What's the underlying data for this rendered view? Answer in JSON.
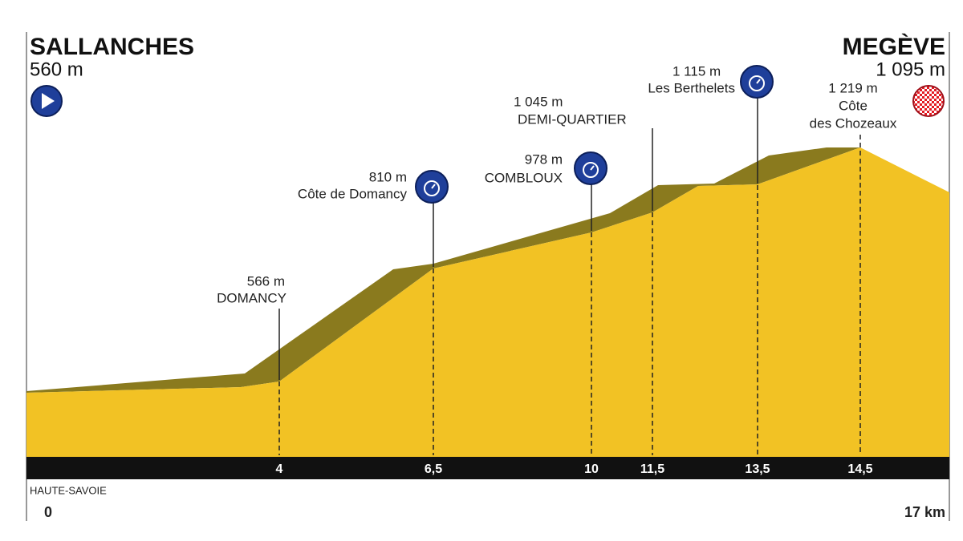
{
  "start": {
    "name": "SALLANCHES",
    "altitude": "560 m"
  },
  "finish": {
    "name": "MEGÈVE",
    "altitude": "1 095 m"
  },
  "points": [
    {
      "altitude": "566 m",
      "name_lines": [
        "DOMANCY"
      ],
      "km": "4"
    },
    {
      "altitude": "810 m",
      "name_lines": [
        "Côte de Domancy"
      ],
      "km": "6,5"
    },
    {
      "altitude": "978 m",
      "name_lines": [
        "COMBLOUX"
      ],
      "km": "10"
    },
    {
      "altitude": "1 045 m",
      "name_lines": [
        "DEMI-QUARTIER"
      ],
      "km": "11,5"
    },
    {
      "altitude": "1 115 m",
      "name_lines": [
        "Les Berthelets"
      ],
      "km": "13,5"
    },
    {
      "altitude": "1 219 m",
      "name_lines": [
        "Côte",
        "des Chozeaux"
      ],
      "km": "14,5"
    }
  ],
  "region": "HAUTE-SAVOIE",
  "axis": {
    "start": "0",
    "end": "17 km"
  }
}
